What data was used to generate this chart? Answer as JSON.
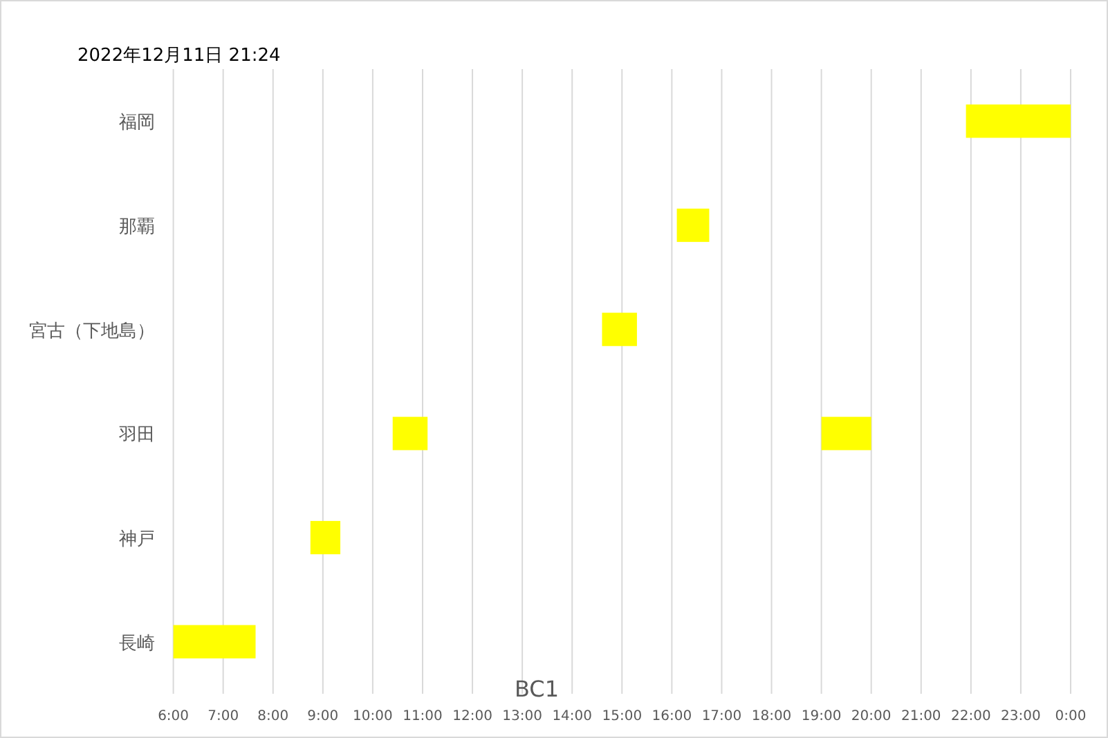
{
  "chart_data": {
    "type": "bar",
    "orientation": "horizontal",
    "title": "2022年12月11日 21:24",
    "xlabel": "BC1",
    "categories": [
      "福岡",
      "那覇",
      "宮古（下地島）",
      "羽田",
      "神戸",
      "長崎"
    ],
    "series": [
      {
        "color": "#ffff00",
        "base": [
          21.9,
          16.1,
          14.6,
          10.4,
          8.75,
          6
        ],
        "values": [
          2.1,
          0.65,
          0.7,
          0.7,
          0.6,
          1.65
        ]
      },
      {
        "color": "#ffff00",
        "base": [
          null,
          null,
          null,
          19,
          null,
          null
        ],
        "values": [
          null,
          null,
          null,
          1,
          null,
          null
        ]
      }
    ],
    "xlim": [
      6,
      24
    ],
    "xticks": [
      {
        "value": 6,
        "label": "6:00"
      },
      {
        "value": 7,
        "label": "7:00"
      },
      {
        "value": 8,
        "label": "8:00"
      },
      {
        "value": 9,
        "label": "9:00"
      },
      {
        "value": 10,
        "label": "10:00"
      },
      {
        "value": 11,
        "label": "11:00"
      },
      {
        "value": 12,
        "label": "12:00"
      },
      {
        "value": 13,
        "label": "13:00"
      },
      {
        "value": 14,
        "label": "14:00"
      },
      {
        "value": 15,
        "label": "15:00"
      },
      {
        "value": 16,
        "label": "16:00"
      },
      {
        "value": 17,
        "label": "17:00"
      },
      {
        "value": 18,
        "label": "18:00"
      },
      {
        "value": 19,
        "label": "19:00"
      },
      {
        "value": 20,
        "label": "20:00"
      },
      {
        "value": 21,
        "label": "21:00"
      },
      {
        "value": 22,
        "label": "22:00"
      },
      {
        "value": 23,
        "label": "23:00"
      },
      {
        "value": 24,
        "label": "0:00"
      }
    ],
    "grid": "x"
  }
}
